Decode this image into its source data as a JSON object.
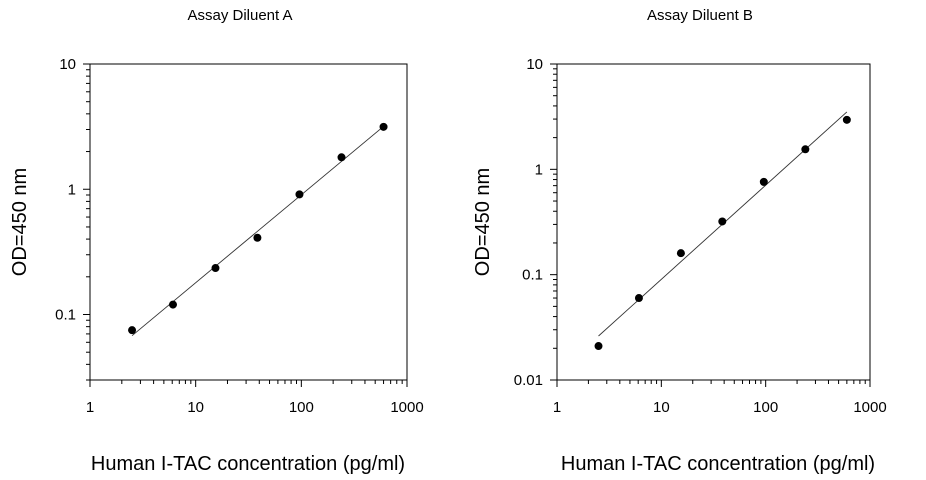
{
  "chart_data": [
    {
      "type": "scatter",
      "title": "Assay Diluent A",
      "xlabel": "Human I-TAC concentration (pg/ml)",
      "ylabel": "OD=450 nm",
      "xscale": "log",
      "yscale": "log",
      "xlim": [
        1,
        1000
      ],
      "ylim": [
        0.03,
        10
      ],
      "xticks": [
        "1",
        "10",
        "100",
        "1000"
      ],
      "yticks": [
        "0.1",
        "1",
        "10"
      ],
      "grid": false,
      "series": [
        {
          "x": [
            2.5,
            6.1,
            15.4,
            38.4,
            96,
            240,
            600
          ],
          "y": [
            0.075,
            0.12,
            0.235,
            0.41,
            0.91,
            1.8,
            3.15
          ],
          "fit": "linear-loglog"
        }
      ]
    },
    {
      "type": "scatter",
      "title": "Assay Diluent B",
      "xlabel": "Human I-TAC concentration (pg/ml)",
      "ylabel": "OD=450 nm",
      "xscale": "log",
      "yscale": "log",
      "xlim": [
        1,
        1000
      ],
      "ylim": [
        0.01,
        10
      ],
      "xticks": [
        "1",
        "10",
        "100",
        "1000"
      ],
      "yticks": [
        "0.01",
        "0.1",
        "1",
        "10"
      ],
      "grid": false,
      "series": [
        {
          "x": [
            2.5,
            6.1,
            15.4,
            38.4,
            96,
            240,
            600
          ],
          "y": [
            0.021,
            0.06,
            0.16,
            0.32,
            0.76,
            1.55,
            2.95
          ],
          "fit": "linear-loglog"
        }
      ]
    }
  ]
}
